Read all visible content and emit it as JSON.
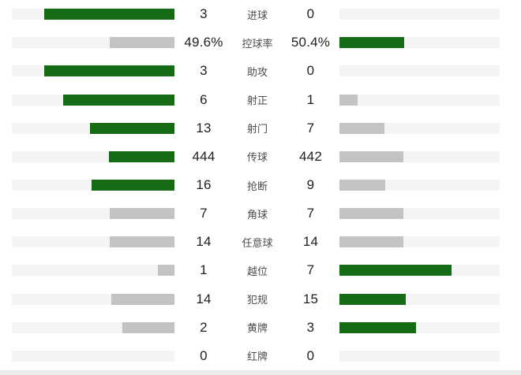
{
  "panel": {
    "type": "football-match-stats-comparison"
  },
  "colors": {
    "bar_win": "#166c16",
    "bar_lose": "#c3c3c3",
    "bar_track": "#f4f4f4",
    "value_text": "#1f1f1f",
    "label_text": "#4d4d4d",
    "bottom_strip": "#ebebeb"
  },
  "bar_scale_max_fraction": 0.8,
  "rows": [
    {
      "label": "进球",
      "left_display": "3",
      "right_display": "0",
      "left_value": 3,
      "right_value": 0
    },
    {
      "label": "控球率",
      "left_display": "49.6%",
      "right_display": "50.4%",
      "left_value": 49.6,
      "right_value": 50.4
    },
    {
      "label": "助攻",
      "left_display": "3",
      "right_display": "0",
      "left_value": 3,
      "right_value": 0
    },
    {
      "label": "射正",
      "left_display": "6",
      "right_display": "1",
      "left_value": 6,
      "right_value": 1
    },
    {
      "label": "射门",
      "left_display": "13",
      "right_display": "7",
      "left_value": 13,
      "right_value": 7
    },
    {
      "label": "传球",
      "left_display": "444",
      "right_display": "442",
      "left_value": 444,
      "right_value": 442
    },
    {
      "label": "抢断",
      "left_display": "16",
      "right_display": "9",
      "left_value": 16,
      "right_value": 9
    },
    {
      "label": "角球",
      "left_display": "7",
      "right_display": "7",
      "left_value": 7,
      "right_value": 7
    },
    {
      "label": "任意球",
      "left_display": "14",
      "right_display": "14",
      "left_value": 14,
      "right_value": 14
    },
    {
      "label": "越位",
      "left_display": "1",
      "right_display": "7",
      "left_value": 1,
      "right_value": 7
    },
    {
      "label": "犯规",
      "left_display": "14",
      "right_display": "15",
      "left_value": 14,
      "right_value": 15
    },
    {
      "label": "黄牌",
      "left_display": "2",
      "right_display": "3",
      "left_value": 2,
      "right_value": 3
    },
    {
      "label": "红牌",
      "left_display": "0",
      "right_display": "0",
      "left_value": 0,
      "right_value": 0
    }
  ],
  "chart_data": {
    "type": "bar",
    "orientation": "horizontal-paired",
    "categories": [
      "进球",
      "控球率",
      "助攻",
      "射正",
      "射门",
      "传球",
      "抢断",
      "角球",
      "任意球",
      "越位",
      "犯规",
      "黄牌",
      "红牌"
    ],
    "series": [
      {
        "name": "home-team-left",
        "values": [
          3,
          49.6,
          3,
          6,
          13,
          444,
          16,
          7,
          14,
          1,
          14,
          2,
          0
        ]
      },
      {
        "name": "away-team-right",
        "values": [
          0,
          50.4,
          0,
          1,
          7,
          442,
          9,
          7,
          14,
          7,
          15,
          3,
          0
        ]
      }
    ],
    "title": "",
    "xlabel": "",
    "ylabel": "",
    "legend": false,
    "grid": false,
    "notes": "Each bar length = value / (left+right) * 80% of track; higher value rendered green, lower/tied rendered gray; zero renders empty track."
  }
}
